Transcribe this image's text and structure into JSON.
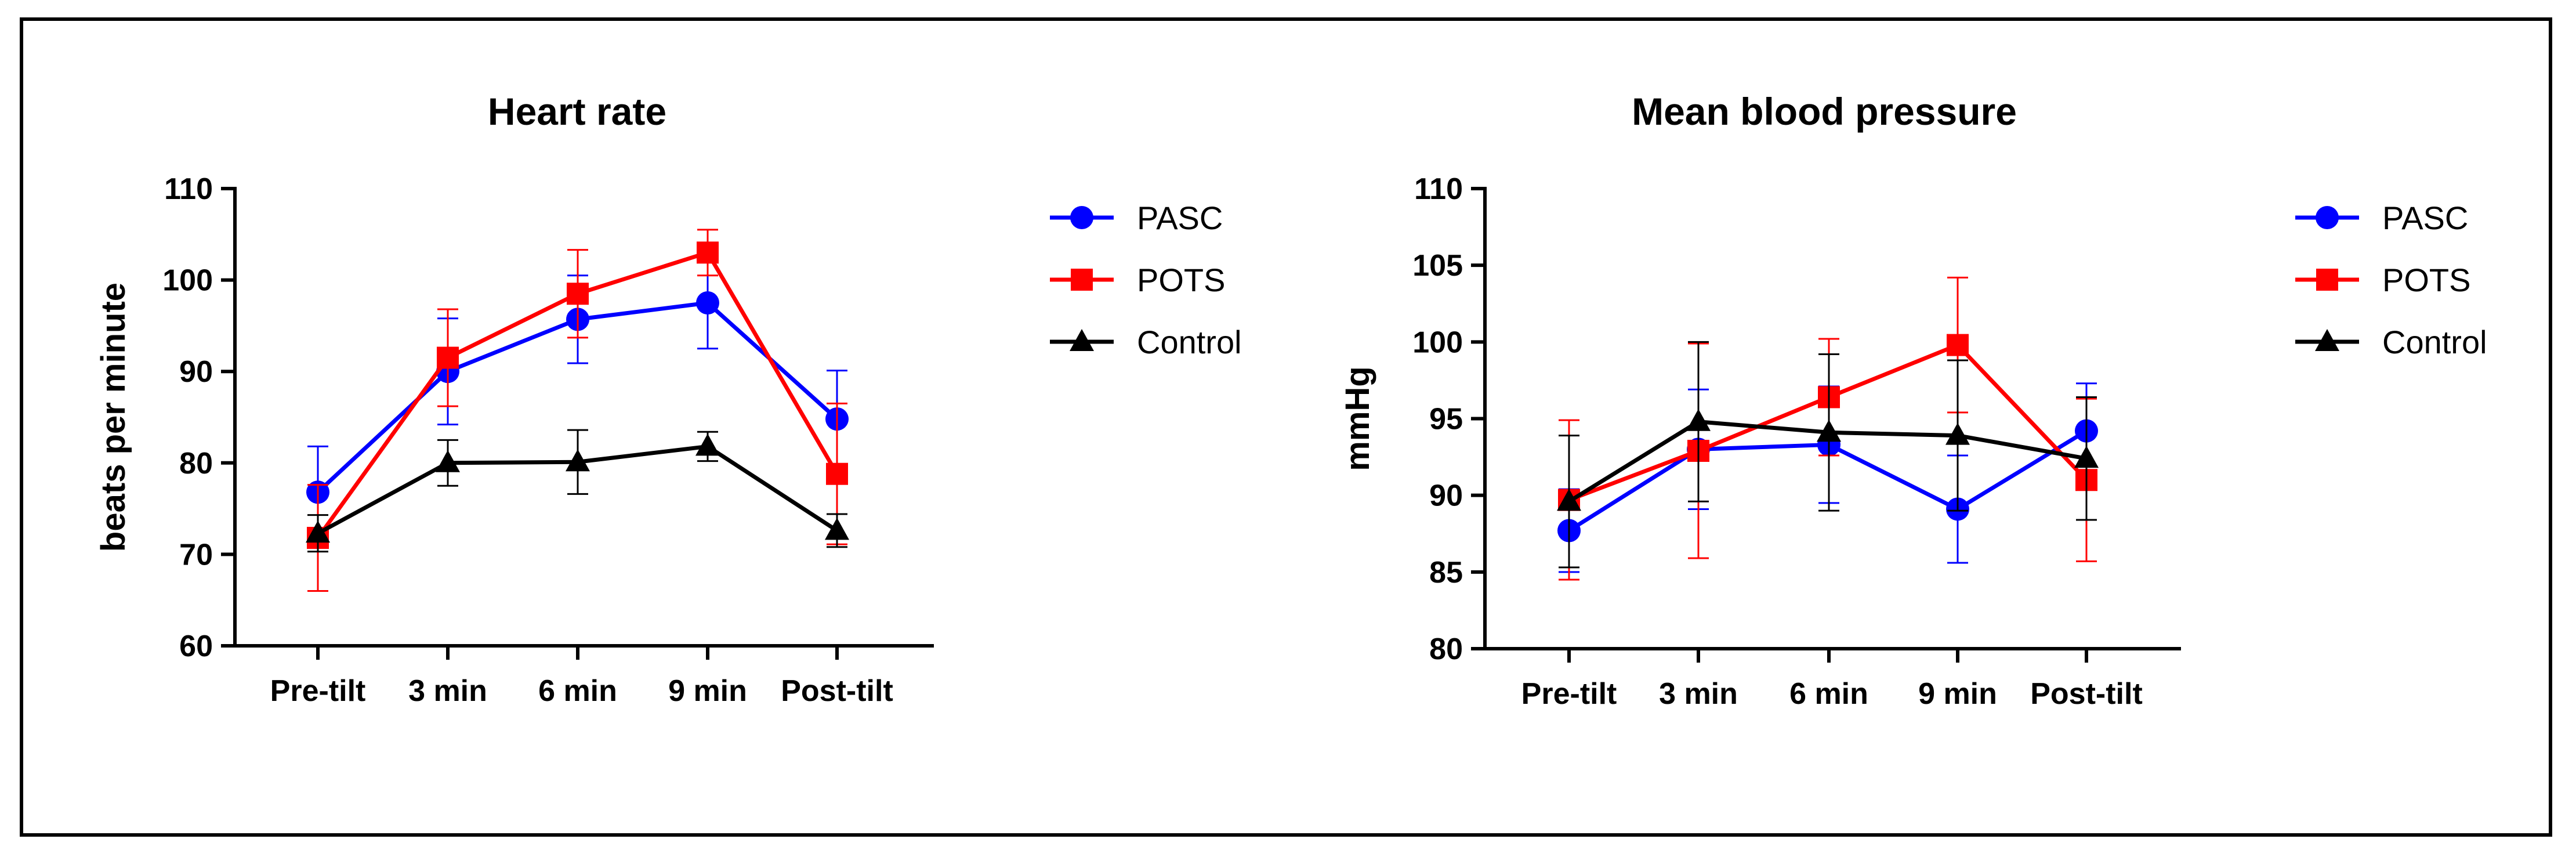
{
  "chart_data": [
    {
      "type": "line",
      "title": "Heart rate",
      "xlabel": "",
      "ylabel": "beats per minute",
      "ylim": [
        60,
        110
      ],
      "yticks": [
        60,
        70,
        80,
        90,
        100,
        110
      ],
      "categories": [
        "Pre-tilt",
        "3 min",
        "6 min",
        "9 min",
        "Post-tilt"
      ],
      "legend_position": "right",
      "series": [
        {
          "name": "PASC",
          "color": "#0000ff",
          "marker": "circle",
          "values": [
            76.8,
            90.0,
            95.7,
            97.5,
            84.8
          ],
          "error": [
            5.0,
            5.8,
            4.8,
            5.0,
            5.3
          ]
        },
        {
          "name": "POTS",
          "color": "#ff0000",
          "marker": "square",
          "values": [
            71.8,
            91.5,
            98.5,
            103.0,
            78.8
          ],
          "error": [
            5.8,
            5.3,
            4.8,
            2.5,
            7.7
          ]
        },
        {
          "name": "Control",
          "color": "#000000",
          "marker": "triangle",
          "values": [
            72.3,
            80.0,
            80.1,
            81.8,
            72.6
          ],
          "error": [
            2.0,
            2.5,
            3.5,
            1.6,
            1.8
          ]
        }
      ]
    },
    {
      "type": "line",
      "title": "Mean blood pressure",
      "xlabel": "",
      "ylabel": "mmHg",
      "ylim": [
        80,
        110
      ],
      "yticks": [
        80,
        85,
        90,
        95,
        100,
        105,
        110
      ],
      "categories": [
        "Pre-tilt",
        "3 min",
        "6 min",
        "9 min",
        "Post-tilt"
      ],
      "legend_position": "right",
      "series": [
        {
          "name": "PASC",
          "color": "#0000ff",
          "marker": "circle",
          "values": [
            87.7,
            93.0,
            93.3,
            89.1,
            94.2
          ],
          "error": [
            2.7,
            3.9,
            3.8,
            3.5,
            3.1
          ]
        },
        {
          "name": "POTS",
          "color": "#ff0000",
          "marker": "square",
          "values": [
            89.7,
            92.9,
            96.4,
            99.8,
            91.0
          ],
          "error": [
            5.2,
            7.0,
            3.8,
            4.4,
            5.3
          ]
        },
        {
          "name": "Control",
          "color": "#000000",
          "marker": "triangle",
          "values": [
            89.6,
            94.8,
            94.1,
            93.9,
            92.4
          ],
          "error": [
            4.3,
            5.2,
            5.1,
            4.9,
            4.0
          ]
        }
      ]
    }
  ]
}
